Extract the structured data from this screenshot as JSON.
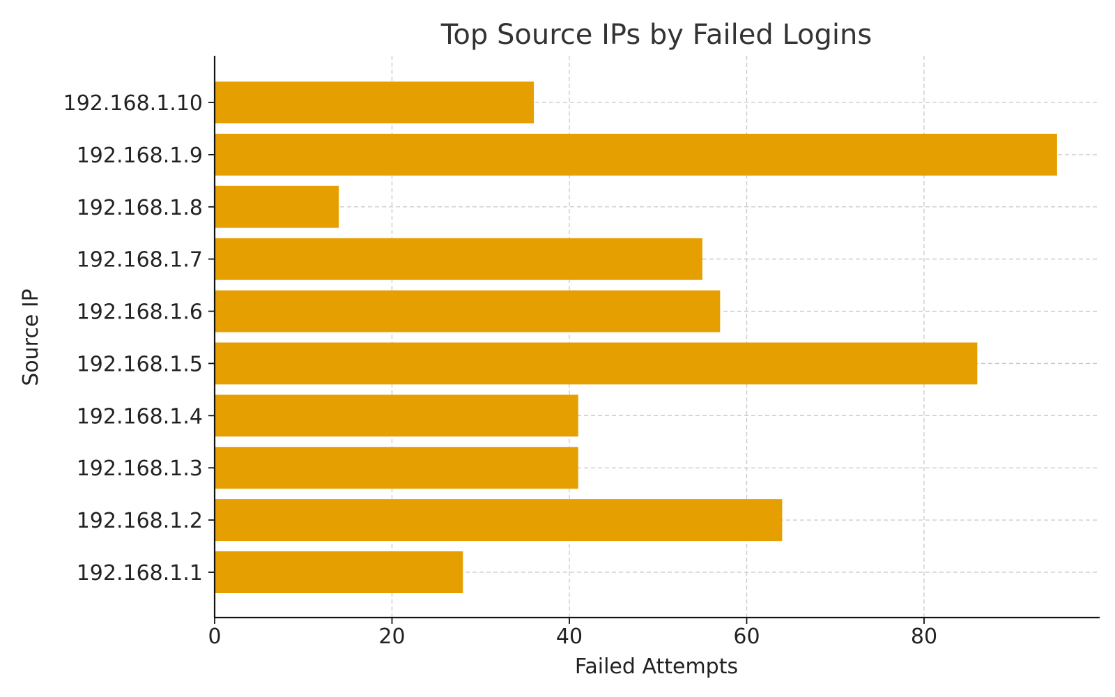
{
  "chart_data": {
    "type": "bar",
    "orientation": "horizontal",
    "title": "Top Source IPs by Failed Logins",
    "xlabel": "Failed Attempts",
    "ylabel": "Source IP",
    "categories": [
      "192.168.1.1",
      "192.168.1.2",
      "192.168.1.3",
      "192.168.1.4",
      "192.168.1.5",
      "192.168.1.6",
      "192.168.1.7",
      "192.168.1.8",
      "192.168.1.9",
      "192.168.1.10"
    ],
    "values": [
      28,
      64,
      41,
      41,
      86,
      57,
      55,
      14,
      95,
      36
    ],
    "xlim": [
      0,
      100
    ],
    "xticks": [
      0,
      20,
      40,
      60,
      80
    ],
    "grid": true,
    "bar_color": "#E69F00"
  }
}
